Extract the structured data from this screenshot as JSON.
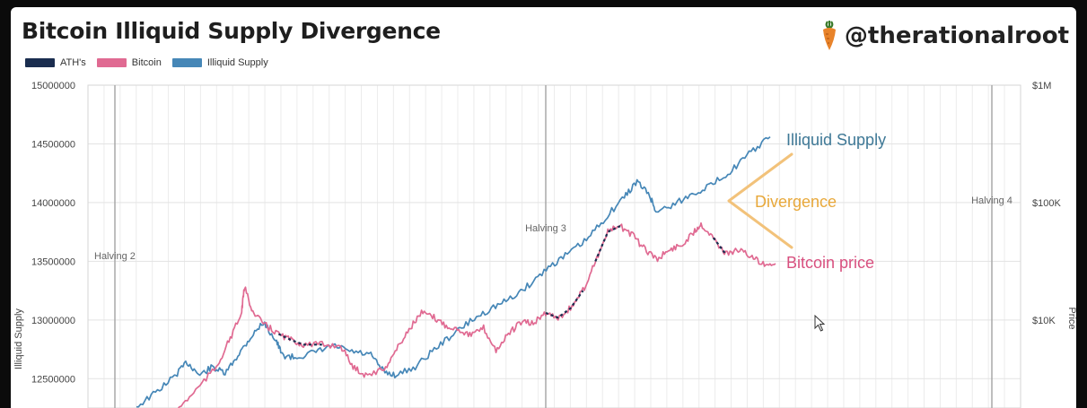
{
  "header": {
    "title": "Bitcoin Illiquid Supply Divergence",
    "brand": "@therationalroot"
  },
  "legend": [
    {
      "label": "ATH's",
      "color": "#1a2d4f"
    },
    {
      "label": "Bitcoin",
      "color": "#e06a92"
    },
    {
      "label": "Illiquid Supply",
      "color": "#4687b7"
    }
  ],
  "chart_data": {
    "type": "line",
    "ylabel": "Illiquid Supply",
    "y2label": "Price",
    "ylim": [
      12250000,
      15000000
    ],
    "yticks": [
      "15000000",
      "14500000",
      "14000000",
      "13500000",
      "13000000",
      "12500000"
    ],
    "y2ticks": [
      "$1M",
      "$100K",
      "$10K"
    ],
    "y2_scale": "log",
    "grid": true,
    "events": [
      "Halving 2",
      "Halving 3",
      "Halving 4"
    ],
    "series": [
      {
        "name": "Illiquid Supply",
        "color": "#4687b7",
        "points": [
          [
            0.0,
            12260000
          ],
          [
            0.03,
            12380000
          ],
          [
            0.06,
            12520000
          ],
          [
            0.08,
            12640000
          ],
          [
            0.1,
            12530000
          ],
          [
            0.12,
            12600000
          ],
          [
            0.14,
            12540000
          ],
          [
            0.16,
            12700000
          ],
          [
            0.18,
            12850000
          ],
          [
            0.2,
            12980000
          ],
          [
            0.22,
            12830000
          ],
          [
            0.23,
            12700000
          ],
          [
            0.25,
            12680000
          ],
          [
            0.28,
            12720000
          ],
          [
            0.31,
            12780000
          ],
          [
            0.34,
            12730000
          ],
          [
            0.37,
            12700000
          ],
          [
            0.39,
            12560000
          ],
          [
            0.41,
            12530000
          ],
          [
            0.44,
            12600000
          ],
          [
            0.47,
            12750000
          ],
          [
            0.5,
            12880000
          ],
          [
            0.53,
            13000000
          ],
          [
            0.56,
            13100000
          ],
          [
            0.59,
            13180000
          ],
          [
            0.62,
            13300000
          ],
          [
            0.65,
            13450000
          ],
          [
            0.68,
            13560000
          ],
          [
            0.71,
            13680000
          ],
          [
            0.74,
            13870000
          ],
          [
            0.77,
            14050000
          ],
          [
            0.79,
            14180000
          ],
          [
            0.81,
            14060000
          ],
          [
            0.82,
            13920000
          ],
          [
            0.85,
            13990000
          ],
          [
            0.88,
            14080000
          ],
          [
            0.91,
            14160000
          ],
          [
            0.94,
            14280000
          ],
          [
            0.97,
            14430000
          ],
          [
            1.0,
            14560000
          ]
        ]
      },
      {
        "name": "Bitcoin",
        "color": "#e06a92",
        "points": [
          [
            0.0,
            12100000
          ],
          [
            0.04,
            12250000
          ],
          [
            0.07,
            12420000
          ],
          [
            0.1,
            12600000
          ],
          [
            0.12,
            12820000
          ],
          [
            0.14,
            13050000
          ],
          [
            0.145,
            13280000
          ],
          [
            0.16,
            13050000
          ],
          [
            0.18,
            12950000
          ],
          [
            0.2,
            12880000
          ],
          [
            0.22,
            12830000
          ],
          [
            0.24,
            12790000
          ],
          [
            0.27,
            12790000
          ],
          [
            0.3,
            12780000
          ],
          [
            0.32,
            12600000
          ],
          [
            0.34,
            12530000
          ],
          [
            0.37,
            12580000
          ],
          [
            0.39,
            12750000
          ],
          [
            0.41,
            12920000
          ],
          [
            0.43,
            13060000
          ],
          [
            0.45,
            13020000
          ],
          [
            0.47,
            12950000
          ],
          [
            0.49,
            12920000
          ],
          [
            0.51,
            12870000
          ],
          [
            0.53,
            12930000
          ],
          [
            0.55,
            12740000
          ],
          [
            0.57,
            12880000
          ],
          [
            0.59,
            12980000
          ],
          [
            0.61,
            12970000
          ],
          [
            0.63,
            13060000
          ],
          [
            0.65,
            13020000
          ],
          [
            0.67,
            13100000
          ],
          [
            0.69,
            13250000
          ],
          [
            0.71,
            13500000
          ],
          [
            0.73,
            13750000
          ],
          [
            0.75,
            13800000
          ],
          [
            0.77,
            13720000
          ],
          [
            0.79,
            13600000
          ],
          [
            0.81,
            13520000
          ],
          [
            0.83,
            13600000
          ],
          [
            0.85,
            13640000
          ],
          [
            0.87,
            13760000
          ],
          [
            0.88,
            13820000
          ],
          [
            0.9,
            13700000
          ],
          [
            0.92,
            13560000
          ],
          [
            0.94,
            13600000
          ],
          [
            0.96,
            13540000
          ],
          [
            0.98,
            13480000
          ],
          [
            1.0,
            13480000
          ]
        ]
      }
    ],
    "annotations": [
      "Illiquid Supply",
      "Divergence",
      "Bitcoin price"
    ],
    "annotation_colors": [
      "#3e7896",
      "#e8a83a",
      "#d8507f"
    ]
  }
}
